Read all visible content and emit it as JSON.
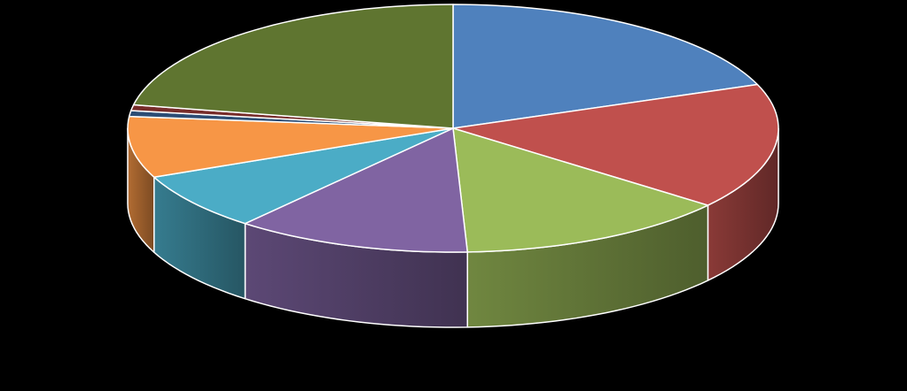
{
  "chart_data": {
    "type": "pie",
    "style": "3d-exploded-none",
    "title": "",
    "legend": "none",
    "data_labels": "none",
    "start_angle_deg": 90,
    "direction": "clockwise",
    "background_color": "#000000",
    "edge_color": "#ffffff",
    "slices": [
      {
        "value": 20.5,
        "color": "#4F81BD"
      },
      {
        "value": 17.5,
        "color": "#C0504D"
      },
      {
        "value": 14.5,
        "color": "#9BBB59"
      },
      {
        "value": 12.5,
        "color": "#8064A2"
      },
      {
        "value": 8.0,
        "color": "#4BACC6"
      },
      {
        "value": 8.5,
        "color": "#F79646"
      },
      {
        "value": 0.8,
        "color": "#2C4D75"
      },
      {
        "value": 0.8,
        "color": "#772C2A"
      },
      {
        "value": 23.4,
        "color": "#5F7530"
      }
    ]
  }
}
